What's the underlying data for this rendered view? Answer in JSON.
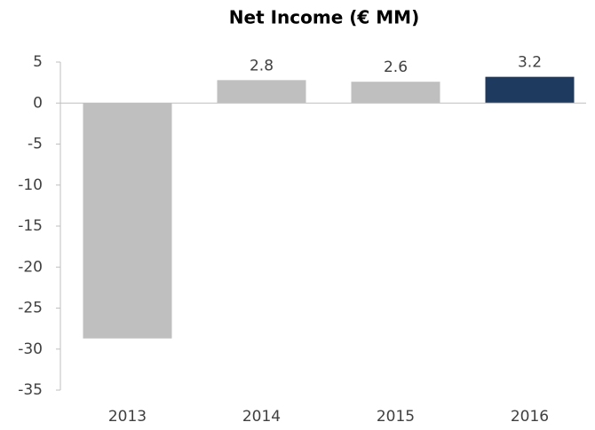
{
  "chart_data": {
    "type": "bar",
    "title": "Net Income (€ MM)",
    "categories": [
      "2013",
      "2014",
      "2015",
      "2016"
    ],
    "values": [
      -28.7,
      2.8,
      2.6,
      3.2
    ],
    "value_labels": [
      null,
      "2.8",
      "2.6",
      "3.2"
    ],
    "colors": [
      "#bfbfbf",
      "#bfbfbf",
      "#bfbfbf",
      "#1f3a5f"
    ],
    "ylim": [
      -35,
      5
    ],
    "yticks": [
      -35,
      -30,
      -25,
      -20,
      -15,
      -10,
      -5,
      0,
      5
    ],
    "grid": false
  }
}
